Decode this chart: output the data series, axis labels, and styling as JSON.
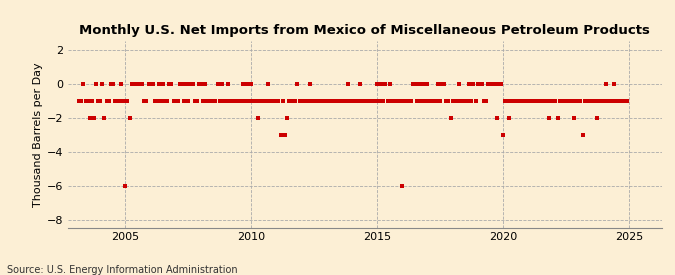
{
  "title": "Monthly U.S. Net Imports from Mexico of Miscellaneous Petroleum Products",
  "ylabel": "Thousand Barrels per Day",
  "source": "Source: U.S. Energy Information Administration",
  "xlim": [
    2002.7,
    2026.3
  ],
  "ylim": [
    -8.5,
    2.5
  ],
  "yticks": [
    2,
    0,
    -2,
    -4,
    -6,
    -8
  ],
  "xticks": [
    2005,
    2010,
    2015,
    2020,
    2025
  ],
  "marker_color": "#cc0000",
  "bg_color": "#fcefd5",
  "grid_color": "#aaaaaa",
  "title_fontsize": 9.5,
  "label_fontsize": 8,
  "tick_fontsize": 8,
  "source_fontsize": 7,
  "data_points": [
    [
      2003.17,
      -1
    ],
    [
      2003.25,
      -1
    ],
    [
      2003.33,
      0
    ],
    [
      2003.42,
      -1
    ],
    [
      2003.5,
      -1
    ],
    [
      2003.58,
      -2
    ],
    [
      2003.67,
      -1
    ],
    [
      2003.75,
      -2
    ],
    [
      2003.83,
      0
    ],
    [
      2003.92,
      -1
    ],
    [
      2004.0,
      -1
    ],
    [
      2004.08,
      0
    ],
    [
      2004.17,
      -2
    ],
    [
      2004.25,
      -1
    ],
    [
      2004.33,
      -1
    ],
    [
      2004.42,
      0
    ],
    [
      2004.5,
      0
    ],
    [
      2004.58,
      -1
    ],
    [
      2004.67,
      -1
    ],
    [
      2004.75,
      -1
    ],
    [
      2004.83,
      0
    ],
    [
      2004.92,
      -1
    ],
    [
      2005.0,
      -6
    ],
    [
      2005.08,
      -1
    ],
    [
      2005.17,
      -2
    ],
    [
      2005.25,
      0
    ],
    [
      2005.33,
      0
    ],
    [
      2005.42,
      0
    ],
    [
      2005.5,
      0
    ],
    [
      2005.58,
      0
    ],
    [
      2005.67,
      0
    ],
    [
      2005.75,
      -1
    ],
    [
      2005.83,
      -1
    ],
    [
      2005.92,
      0
    ],
    [
      2006.0,
      0
    ],
    [
      2006.08,
      0
    ],
    [
      2006.17,
      -1
    ],
    [
      2006.25,
      -1
    ],
    [
      2006.33,
      0
    ],
    [
      2006.42,
      -1
    ],
    [
      2006.5,
      0
    ],
    [
      2006.58,
      -1
    ],
    [
      2006.67,
      -1
    ],
    [
      2006.75,
      0
    ],
    [
      2006.83,
      0
    ],
    [
      2006.92,
      -1
    ],
    [
      2007.0,
      -1
    ],
    [
      2007.08,
      -1
    ],
    [
      2007.17,
      0
    ],
    [
      2007.25,
      0
    ],
    [
      2007.33,
      -1
    ],
    [
      2007.42,
      0
    ],
    [
      2007.5,
      -1
    ],
    [
      2007.58,
      0
    ],
    [
      2007.67,
      0
    ],
    [
      2007.75,
      -1
    ],
    [
      2007.83,
      -1
    ],
    [
      2007.92,
      0
    ],
    [
      2008.0,
      0
    ],
    [
      2008.08,
      -1
    ],
    [
      2008.17,
      0
    ],
    [
      2008.25,
      -1
    ],
    [
      2008.33,
      -1
    ],
    [
      2008.42,
      -1
    ],
    [
      2008.5,
      -1
    ],
    [
      2008.58,
      -1
    ],
    [
      2008.67,
      0
    ],
    [
      2008.75,
      -1
    ],
    [
      2008.83,
      0
    ],
    [
      2008.92,
      -1
    ],
    [
      2009.0,
      -1
    ],
    [
      2009.08,
      0
    ],
    [
      2009.17,
      -1
    ],
    [
      2009.25,
      -1
    ],
    [
      2009.33,
      -1
    ],
    [
      2009.42,
      -1
    ],
    [
      2009.5,
      -1
    ],
    [
      2009.58,
      -1
    ],
    [
      2009.67,
      0
    ],
    [
      2009.75,
      -1
    ],
    [
      2009.83,
      0
    ],
    [
      2009.92,
      -1
    ],
    [
      2010.0,
      0
    ],
    [
      2010.08,
      -1
    ],
    [
      2010.17,
      -1
    ],
    [
      2010.25,
      -2
    ],
    [
      2010.33,
      -1
    ],
    [
      2010.42,
      -1
    ],
    [
      2010.5,
      -1
    ],
    [
      2010.58,
      -1
    ],
    [
      2010.67,
      0
    ],
    [
      2010.75,
      -1
    ],
    [
      2010.83,
      -1
    ],
    [
      2010.92,
      -1
    ],
    [
      2011.0,
      -1
    ],
    [
      2011.08,
      -1
    ],
    [
      2011.17,
      -3
    ],
    [
      2011.25,
      -1
    ],
    [
      2011.33,
      -3
    ],
    [
      2011.42,
      -2
    ],
    [
      2011.5,
      -1
    ],
    [
      2011.58,
      -1
    ],
    [
      2011.67,
      -1
    ],
    [
      2011.75,
      -1
    ],
    [
      2011.83,
      0
    ],
    [
      2011.92,
      -1
    ],
    [
      2012.0,
      -1
    ],
    [
      2012.08,
      -1
    ],
    [
      2012.17,
      -1
    ],
    [
      2012.25,
      -1
    ],
    [
      2012.33,
      0
    ],
    [
      2012.42,
      -1
    ],
    [
      2012.5,
      -1
    ],
    [
      2012.58,
      -1
    ],
    [
      2012.67,
      -1
    ],
    [
      2012.75,
      -1
    ],
    [
      2012.83,
      -1
    ],
    [
      2012.92,
      -1
    ],
    [
      2013.0,
      -1
    ],
    [
      2013.08,
      -1
    ],
    [
      2013.17,
      -1
    ],
    [
      2013.25,
      -1
    ],
    [
      2013.33,
      -1
    ],
    [
      2013.42,
      -1
    ],
    [
      2013.5,
      -1
    ],
    [
      2013.58,
      -1
    ],
    [
      2013.67,
      -1
    ],
    [
      2013.75,
      -1
    ],
    [
      2013.83,
      0
    ],
    [
      2013.92,
      -1
    ],
    [
      2014.0,
      -1
    ],
    [
      2014.08,
      -1
    ],
    [
      2014.17,
      -1
    ],
    [
      2014.25,
      -1
    ],
    [
      2014.33,
      0
    ],
    [
      2014.42,
      -1
    ],
    [
      2014.5,
      -1
    ],
    [
      2014.58,
      -1
    ],
    [
      2014.67,
      -1
    ],
    [
      2014.75,
      -1
    ],
    [
      2014.83,
      -1
    ],
    [
      2014.92,
      -1
    ],
    [
      2015.0,
      0
    ],
    [
      2015.08,
      -1
    ],
    [
      2015.17,
      0
    ],
    [
      2015.25,
      -1
    ],
    [
      2015.33,
      0
    ],
    [
      2015.42,
      -1
    ],
    [
      2015.5,
      0
    ],
    [
      2015.58,
      -1
    ],
    [
      2015.67,
      -1
    ],
    [
      2015.75,
      -1
    ],
    [
      2015.83,
      -1
    ],
    [
      2015.92,
      -1
    ],
    [
      2016.0,
      -6
    ],
    [
      2016.08,
      -1
    ],
    [
      2016.17,
      -1
    ],
    [
      2016.25,
      -1
    ],
    [
      2016.33,
      -1
    ],
    [
      2016.42,
      0
    ],
    [
      2016.5,
      0
    ],
    [
      2016.58,
      -1
    ],
    [
      2016.67,
      0
    ],
    [
      2016.75,
      -1
    ],
    [
      2016.83,
      0
    ],
    [
      2016.92,
      -1
    ],
    [
      2017.0,
      0
    ],
    [
      2017.08,
      -1
    ],
    [
      2017.17,
      -1
    ],
    [
      2017.25,
      -1
    ],
    [
      2017.33,
      -1
    ],
    [
      2017.42,
      0
    ],
    [
      2017.5,
      -1
    ],
    [
      2017.58,
      0
    ],
    [
      2017.67,
      0
    ],
    [
      2017.75,
      -1
    ],
    [
      2017.83,
      -1
    ],
    [
      2017.92,
      -2
    ],
    [
      2018.0,
      -1
    ],
    [
      2018.08,
      -1
    ],
    [
      2018.17,
      -1
    ],
    [
      2018.25,
      0
    ],
    [
      2018.33,
      -1
    ],
    [
      2018.42,
      -1
    ],
    [
      2018.5,
      -1
    ],
    [
      2018.58,
      -1
    ],
    [
      2018.67,
      0
    ],
    [
      2018.75,
      -1
    ],
    [
      2018.83,
      0
    ],
    [
      2018.92,
      -1
    ],
    [
      2019.0,
      0
    ],
    [
      2019.08,
      0
    ],
    [
      2019.17,
      0
    ],
    [
      2019.25,
      -1
    ],
    [
      2019.33,
      -1
    ],
    [
      2019.42,
      0
    ],
    [
      2019.5,
      0
    ],
    [
      2019.58,
      0
    ],
    [
      2019.67,
      0
    ],
    [
      2019.75,
      -2
    ],
    [
      2019.83,
      0
    ],
    [
      2019.92,
      0
    ],
    [
      2020.0,
      -3
    ],
    [
      2020.08,
      -1
    ],
    [
      2020.17,
      -1
    ],
    [
      2020.25,
      -2
    ],
    [
      2020.33,
      -1
    ],
    [
      2020.42,
      -1
    ],
    [
      2020.5,
      -1
    ],
    [
      2020.58,
      -1
    ],
    [
      2020.67,
      -1
    ],
    [
      2020.75,
      -1
    ],
    [
      2020.83,
      -1
    ],
    [
      2020.92,
      -1
    ],
    [
      2021.0,
      -1
    ],
    [
      2021.08,
      -1
    ],
    [
      2021.17,
      -1
    ],
    [
      2021.25,
      -1
    ],
    [
      2021.33,
      -1
    ],
    [
      2021.42,
      -1
    ],
    [
      2021.5,
      -1
    ],
    [
      2021.58,
      -1
    ],
    [
      2021.67,
      -1
    ],
    [
      2021.75,
      -1
    ],
    [
      2021.83,
      -2
    ],
    [
      2021.92,
      -1
    ],
    [
      2022.0,
      -1
    ],
    [
      2022.08,
      -1
    ],
    [
      2022.17,
      -2
    ],
    [
      2022.25,
      -1
    ],
    [
      2022.33,
      -1
    ],
    [
      2022.42,
      -1
    ],
    [
      2022.5,
      -1
    ],
    [
      2022.58,
      -1
    ],
    [
      2022.67,
      -1
    ],
    [
      2022.75,
      -1
    ],
    [
      2022.83,
      -2
    ],
    [
      2022.92,
      -1
    ],
    [
      2023.0,
      -1
    ],
    [
      2023.08,
      -1
    ],
    [
      2023.17,
      -3
    ],
    [
      2023.25,
      -1
    ],
    [
      2023.33,
      -1
    ],
    [
      2023.42,
      -1
    ],
    [
      2023.5,
      -1
    ],
    [
      2023.58,
      -1
    ],
    [
      2023.67,
      -1
    ],
    [
      2023.75,
      -2
    ],
    [
      2023.83,
      -1
    ],
    [
      2023.92,
      -1
    ],
    [
      2024.0,
      -1
    ],
    [
      2024.08,
      0
    ],
    [
      2024.17,
      -1
    ],
    [
      2024.25,
      -1
    ],
    [
      2024.33,
      -1
    ],
    [
      2024.42,
      0
    ],
    [
      2024.5,
      -1
    ],
    [
      2024.58,
      -1
    ],
    [
      2024.67,
      -1
    ],
    [
      2024.75,
      -1
    ],
    [
      2024.83,
      -1
    ],
    [
      2024.92,
      -1
    ]
  ]
}
